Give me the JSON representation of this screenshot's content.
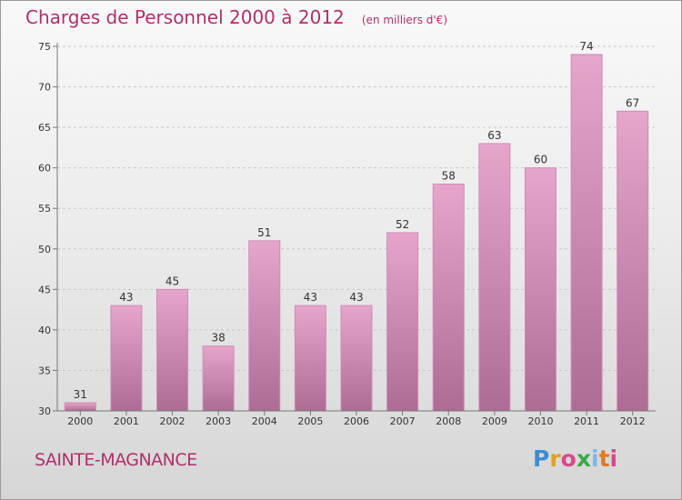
{
  "header": {
    "title": "Charges de Personnel 2000 à 2012",
    "unit": "(en milliers d'€)"
  },
  "footer": {
    "place": "SAINTE-MAGNANCE",
    "logo": [
      "P",
      "r",
      "o",
      "x",
      "i",
      "t",
      "i"
    ]
  },
  "chart_data": {
    "type": "bar",
    "title": "Charges de Personnel 2000 à 2012",
    "subtitle": "(en milliers d'€)",
    "categories": [
      "2000",
      "2001",
      "2002",
      "2003",
      "2004",
      "2005",
      "2006",
      "2007",
      "2008",
      "2009",
      "2010",
      "2011",
      "2012"
    ],
    "values": [
      31,
      43,
      45,
      38,
      51,
      43,
      43,
      52,
      58,
      63,
      60,
      74,
      67
    ],
    "ylim": [
      30,
      75
    ],
    "yticks": [
      30,
      35,
      40,
      45,
      50,
      55,
      60,
      65,
      70,
      75
    ],
    "grid": true,
    "colors": {
      "bar_light": "#e6a6cc",
      "bar_dark": "#ad6c94",
      "bar_edge": "#cf8ab4",
      "grid": "#c8c8c8",
      "axis_text": "#333333",
      "title": "#b0306a"
    }
  }
}
